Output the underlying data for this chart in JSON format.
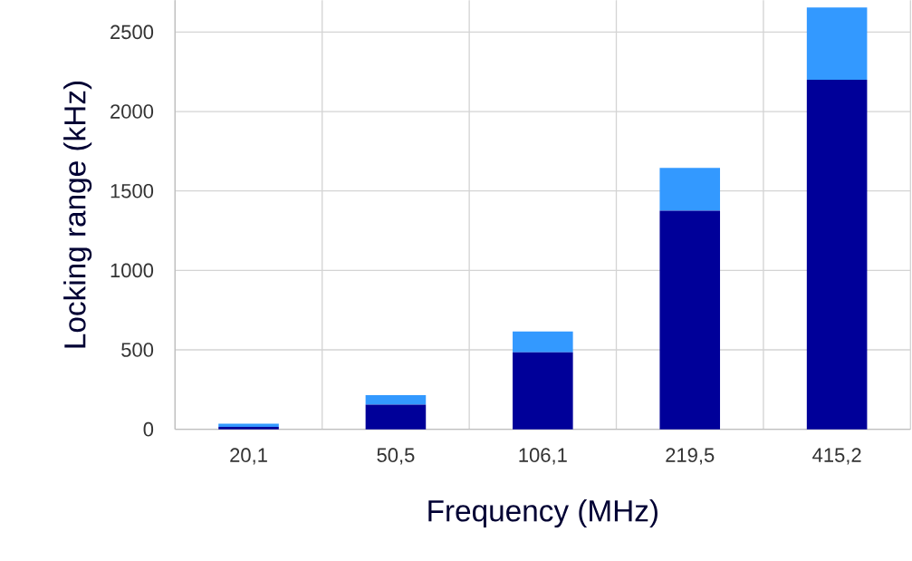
{
  "chart_data": {
    "type": "bar",
    "stacked": true,
    "xlabel": "Frequency (MHz)",
    "ylabel": "Locking range (kHz)",
    "categories": [
      "20,1",
      "50,5",
      "106,1",
      "219,5",
      "415,2"
    ],
    "series": [
      {
        "color": "#000099",
        "values": [
          15,
          155,
          485,
          1375,
          2200
        ]
      },
      {
        "color": "#3399ff",
        "values": [
          20,
          60,
          130,
          270,
          455
        ]
      }
    ],
    "ylim": [
      0,
      2700
    ],
    "yticks": [
      0,
      500,
      1000,
      1500,
      2000,
      2500
    ],
    "grid": true
  }
}
